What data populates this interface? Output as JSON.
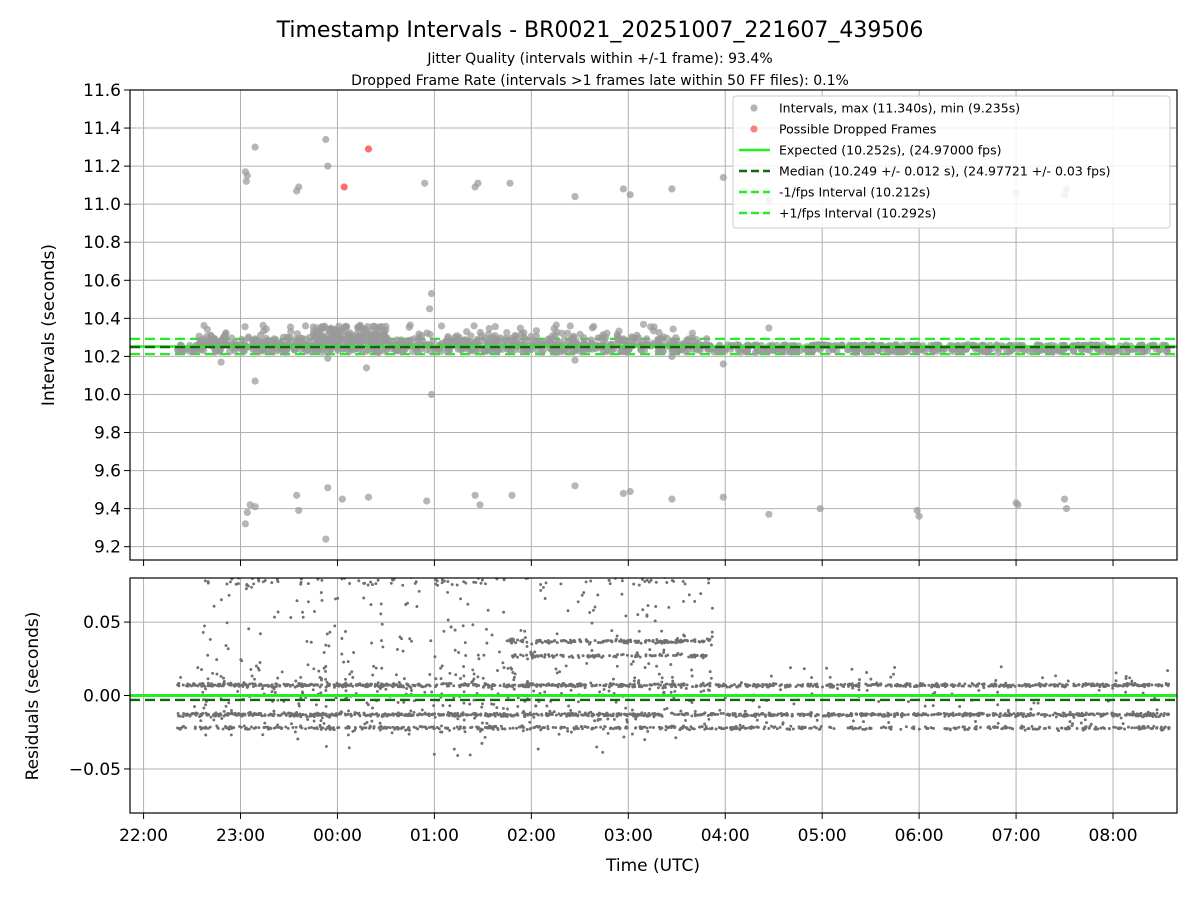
{
  "chart_data": {
    "type": "scatter",
    "title": "Timestamp Intervals - BR0021_20251007_221607_439506",
    "subtitle_line1": "Jitter Quality (intervals within +/-1 frame): 93.4%",
    "subtitle_line2": "Dropped Frame Rate (intervals >1 frames late within 50 FF files): 0.1%",
    "xlabel": "Time (UTC)",
    "x_ticks": [
      "22:00",
      "23:00",
      "00:00",
      "01:00",
      "02:00",
      "03:00",
      "04:00",
      "05:00",
      "06:00",
      "07:00",
      "08:00"
    ],
    "x_range_hours": [
      21.86,
      32.66
    ],
    "grid": true,
    "top_panel": {
      "ylabel": "Intervals (seconds)",
      "ylim": [
        9.13,
        11.6
      ],
      "y_ticks": [
        "9.2",
        "9.4",
        "9.6",
        "9.8",
        "10.0",
        "10.2",
        "10.4",
        "10.6",
        "10.8",
        "11.0",
        "11.2",
        "11.4",
        "11.6"
      ],
      "legend_position": "upper right",
      "legend": [
        {
          "label": "Intervals, max (11.340s), min (9.235s)",
          "kind": "marker",
          "color": "#9a9a9a"
        },
        {
          "label": "Possible Dropped Frames",
          "kind": "marker",
          "color": "#ff5555"
        },
        {
          "label": "Expected (10.252s), (24.97000 fps)",
          "kind": "line",
          "color": "#22ee22",
          "dash": "solid"
        },
        {
          "label": "Median (10.249 +/- 0.012 s), (24.97721 +/- 0.03 fps)",
          "kind": "line",
          "color": "#116611",
          "dash": "dashed"
        },
        {
          "label": "-1/fps Interval (10.212s)",
          "kind": "line",
          "color": "#22ee22",
          "dash": "dashed"
        },
        {
          "label": "+1/fps Interval (10.292s)",
          "kind": "line",
          "color": "#22ee22",
          "dash": "dashed"
        }
      ],
      "reference_lines": {
        "expected": 10.252,
        "median": 10.249,
        "minus_1fps": 10.212,
        "plus_1fps": 10.292
      },
      "series": [
        {
          "name": "Intervals, max (11.340s), min (9.235s)",
          "color": "#9a9a9a",
          "note": "approx. 2800 points, dense band 10.21-10.30 s from 22:20 to 08:35 UTC, scattered up to 10.53 s before 04:00",
          "outliers": [
            [
              23.05,
              11.17
            ],
            [
              23.07,
              11.15
            ],
            [
              23.06,
              11.12
            ],
            [
              23.15,
              11.3
            ],
            [
              23.58,
              11.07
            ],
            [
              23.6,
              11.09
            ],
            [
              23.88,
              11.34
            ],
            [
              23.9,
              11.2
            ],
            [
              24.9,
              11.11
            ],
            [
              25.42,
              11.09
            ],
            [
              25.45,
              11.11
            ],
            [
              25.78,
              11.11
            ],
            [
              26.45,
              11.04
            ],
            [
              26.95,
              11.08
            ],
            [
              27.02,
              11.05
            ],
            [
              27.45,
              11.08
            ],
            [
              27.98,
              11.14
            ],
            [
              28.45,
              11.02
            ],
            [
              31.0,
              11.06
            ],
            [
              31.5,
              11.05
            ],
            [
              31.52,
              11.08
            ],
            [
              23.05,
              9.32
            ],
            [
              23.07,
              9.38
            ],
            [
              23.1,
              9.42
            ],
            [
              23.15,
              9.41
            ],
            [
              23.58,
              9.47
            ],
            [
              23.6,
              9.39
            ],
            [
              23.9,
              9.51
            ],
            [
              23.88,
              9.24
            ],
            [
              24.05,
              9.45
            ],
            [
              24.32,
              9.46
            ],
            [
              24.92,
              9.44
            ],
            [
              25.42,
              9.47
            ],
            [
              25.47,
              9.42
            ],
            [
              25.8,
              9.47
            ],
            [
              26.45,
              9.52
            ],
            [
              26.95,
              9.48
            ],
            [
              27.02,
              9.49
            ],
            [
              27.45,
              9.45
            ],
            [
              27.98,
              9.46
            ],
            [
              28.45,
              9.37
            ],
            [
              28.98,
              9.4
            ],
            [
              29.98,
              9.39
            ],
            [
              30.0,
              9.36
            ],
            [
              31.0,
              9.43
            ],
            [
              31.02,
              9.42
            ],
            [
              31.5,
              9.45
            ],
            [
              31.52,
              9.4
            ],
            [
              23.15,
              10.07
            ],
            [
              24.97,
              10.0
            ],
            [
              27.98,
              10.16
            ],
            [
              22.8,
              10.17
            ],
            [
              24.97,
              10.53
            ],
            [
              24.95,
              10.45
            ],
            [
              23.9,
              10.19
            ],
            [
              24.3,
              10.14
            ],
            [
              28.45,
              10.35
            ],
            [
              26.45,
              10.18
            ],
            [
              27.45,
              10.2
            ]
          ]
        },
        {
          "name": "Possible Dropped Frames",
          "color": "#ff5555",
          "points": [
            [
              24.07,
              11.09
            ],
            [
              24.32,
              11.29
            ]
          ]
        }
      ]
    },
    "bottom_panel": {
      "ylabel": "Residuals (seconds)",
      "ylim": [
        -0.08,
        0.08
      ],
      "y_ticks": [
        "−0.05",
        "0.00",
        "0.05"
      ],
      "y_tick_values": [
        -0.05,
        0.0,
        0.05
      ],
      "series": [
        {
          "name": "residuals",
          "color": "#707070",
          "note": "approx. 3000 points; bands near 0.007, -0.013, -0.022 s over 22:20-08:35; values to +/-0.08 s before 04:00; bands near 0.037 and 0.027 s from 01:45 to 03:50"
        }
      ],
      "reference_lines": {
        "expected": 0.0,
        "median": -0.003
      }
    }
  }
}
